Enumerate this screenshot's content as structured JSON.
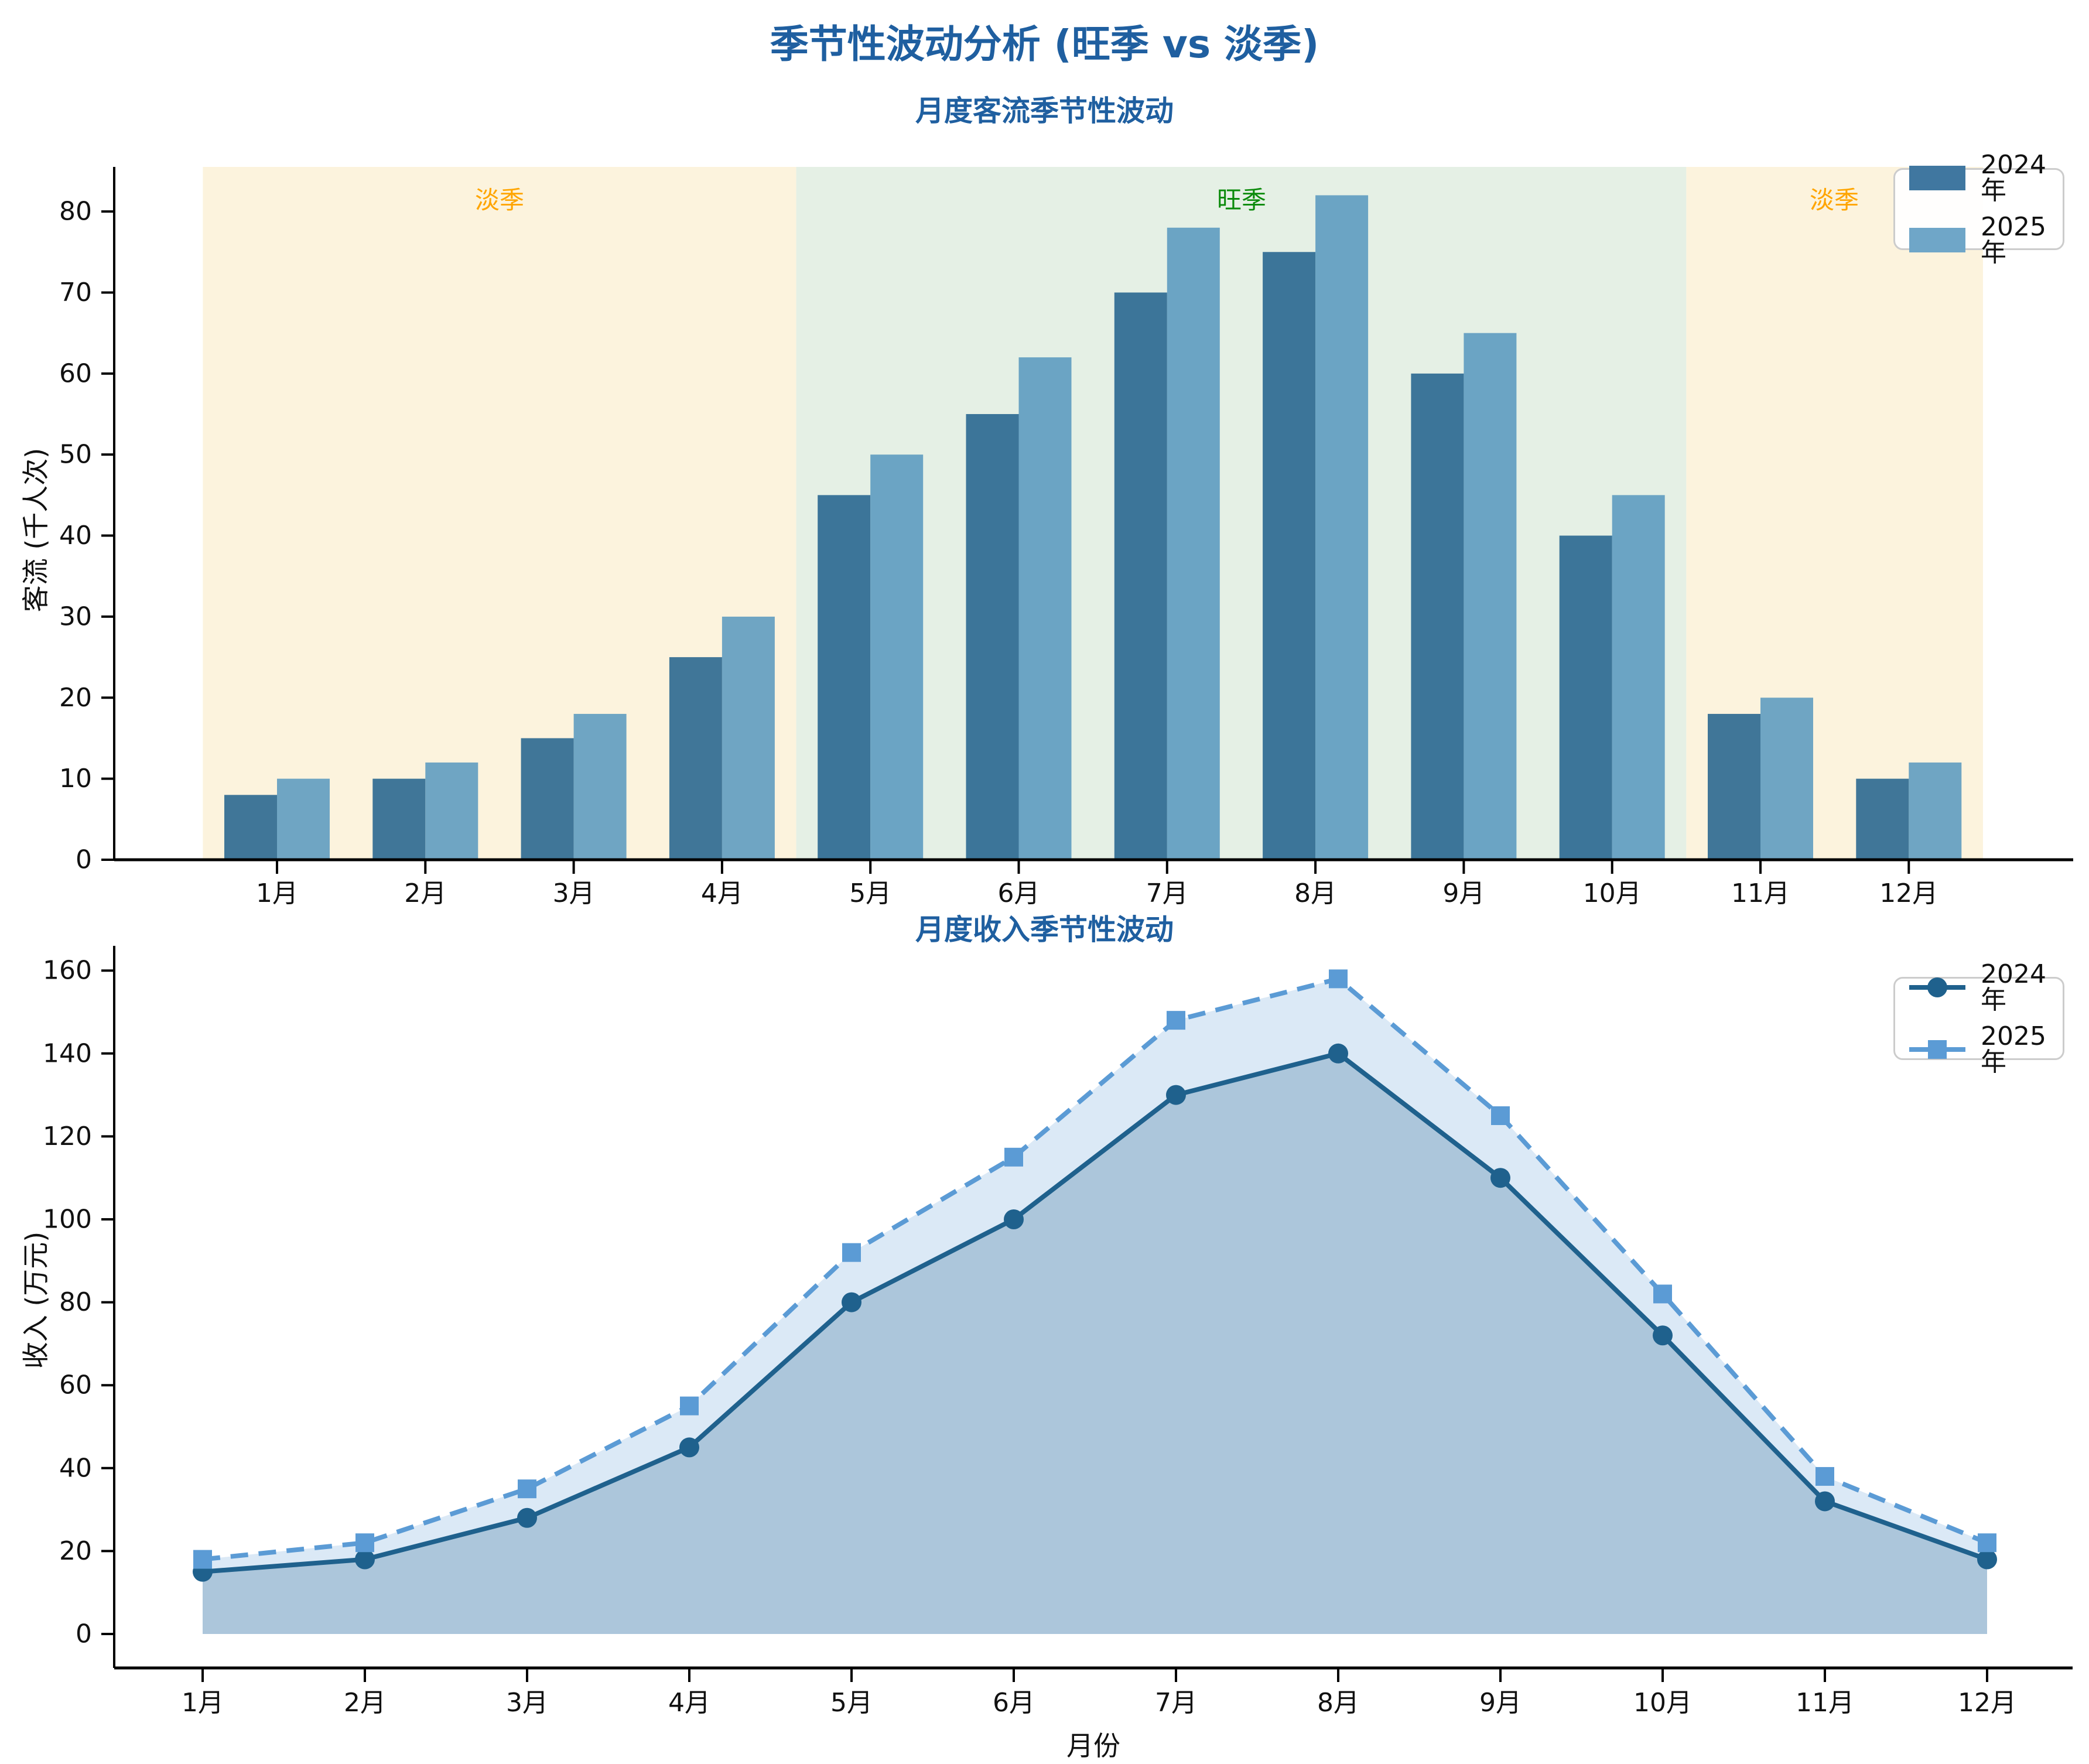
{
  "figure": {
    "title": "季节性波动分析 (旺季 vs 淡季)",
    "title_color": "#1F5FA0",
    "background": "#FFFFFF"
  },
  "chart_data": [
    {
      "type": "bar",
      "title": "月度客流季节性波动",
      "ylabel": "客流 (千人次)",
      "categories": [
        "1月",
        "2月",
        "3月",
        "4月",
        "5月",
        "6月",
        "7月",
        "8月",
        "9月",
        "10月",
        "11月",
        "12月"
      ],
      "series": [
        {
          "name": "2024年",
          "values": [
            8,
            10,
            15,
            25,
            45,
            55,
            70,
            75,
            60,
            40,
            18,
            10
          ],
          "color": "#1E5F8C"
        },
        {
          "name": "2025年",
          "values": [
            10,
            12,
            18,
            30,
            50,
            62,
            78,
            82,
            65,
            45,
            20,
            12
          ],
          "color": "#5696BE"
        }
      ],
      "bar_alpha": 0.85,
      "ylim": [
        0,
        85.5
      ],
      "yticks": [
        0,
        10,
        20,
        30,
        40,
        50,
        60,
        70,
        80
      ],
      "grid": false,
      "legend_position": "upper right",
      "bands": [
        {
          "label": "淡季",
          "from": 0.5,
          "to": 4.5,
          "color": "#FCF3DD",
          "label_color": "#FFA500"
        },
        {
          "label": "旺季",
          "from": 4.5,
          "to": 10.5,
          "color": "#E5F0E5",
          "label_color": "#0A8A0A"
        },
        {
          "label": "淡季",
          "from": 10.5,
          "to": 12.5,
          "color": "#FCF3DD",
          "label_color": "#FFA500"
        }
      ]
    },
    {
      "type": "line",
      "title": "月度收入季节性波动",
      "xlabel": "月份",
      "ylabel": "收入 (万元)",
      "categories": [
        "1月",
        "2月",
        "3月",
        "4月",
        "5月",
        "6月",
        "7月",
        "8月",
        "9月",
        "10月",
        "11月",
        "12月"
      ],
      "series": [
        {
          "name": "2024年",
          "values": [
            15,
            18,
            28,
            45,
            80,
            100,
            130,
            140,
            110,
            72,
            32,
            18
          ],
          "color": "#1F618D",
          "style": "solid",
          "marker": "circle",
          "fill_alpha": 0.25
        },
        {
          "name": "2025年",
          "values": [
            18,
            22,
            35,
            55,
            92,
            115,
            148,
            158,
            125,
            82,
            38,
            22
          ],
          "color": "#5B9BD5",
          "style": "dashed",
          "marker": "square",
          "fill_alpha": 0.22
        }
      ],
      "ylim": [
        -8,
        166
      ],
      "yticks": [
        0,
        20,
        40,
        60,
        80,
        100,
        120,
        140,
        160
      ],
      "grid": false,
      "area_fill": true,
      "legend_position": "upper right"
    }
  ]
}
